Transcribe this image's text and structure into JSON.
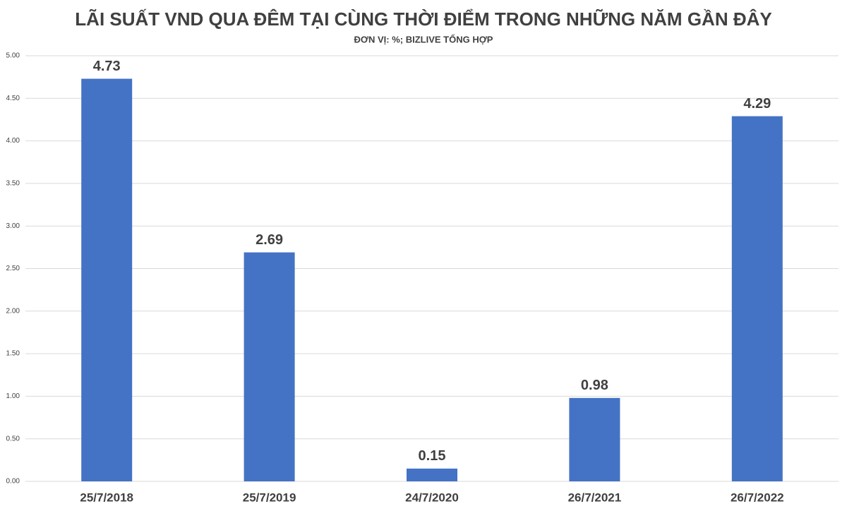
{
  "chart_data": {
    "type": "bar",
    "title": "LÃI SUẤT VND QUA ĐÊM TẠI CÙNG THỜI ĐIỂM TRONG NHỮNG NĂM GẦN ĐÂY",
    "subtitle": "ĐƠN VỊ: %; BIZLIVE TỔNG HỢP",
    "categories": [
      "25/7/2018",
      "25/7/2019",
      "24/7/2020",
      "26/7/2021",
      "26/7/2022"
    ],
    "values": [
      4.73,
      2.69,
      0.15,
      0.98,
      4.29
    ],
    "color": "#4472c4",
    "ylim": [
      0,
      5
    ],
    "yticks": [
      {
        "value": 0,
        "label": "0.00"
      },
      {
        "value": 0.5,
        "label": "0.50"
      },
      {
        "value": 1,
        "label": "1.00"
      },
      {
        "value": 1.5,
        "label": "1.50"
      },
      {
        "value": 2,
        "label": "2.00"
      },
      {
        "value": 2.5,
        "label": "2.50"
      },
      {
        "value": 3,
        "label": "3.00"
      },
      {
        "value": 3.5,
        "label": "3.50"
      },
      {
        "value": 4,
        "label": "4.00"
      },
      {
        "value": 4.5,
        "label": "4.50"
      },
      {
        "value": 5,
        "label": "5.00"
      }
    ],
    "grid": true
  }
}
